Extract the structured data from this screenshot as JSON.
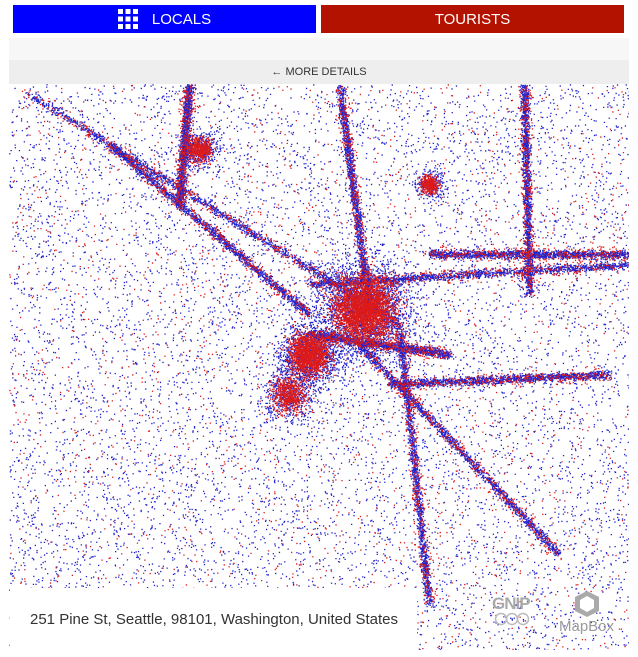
{
  "tabs": {
    "locals": "LOCALS",
    "tourists": "TOURISTS"
  },
  "details_link": "← MORE DETAILS",
  "address": "251 Pine St, Seattle, 98101, Washington, United States",
  "logos": {
    "gnip": "GNIP",
    "mapbox": "MapBox"
  }
}
